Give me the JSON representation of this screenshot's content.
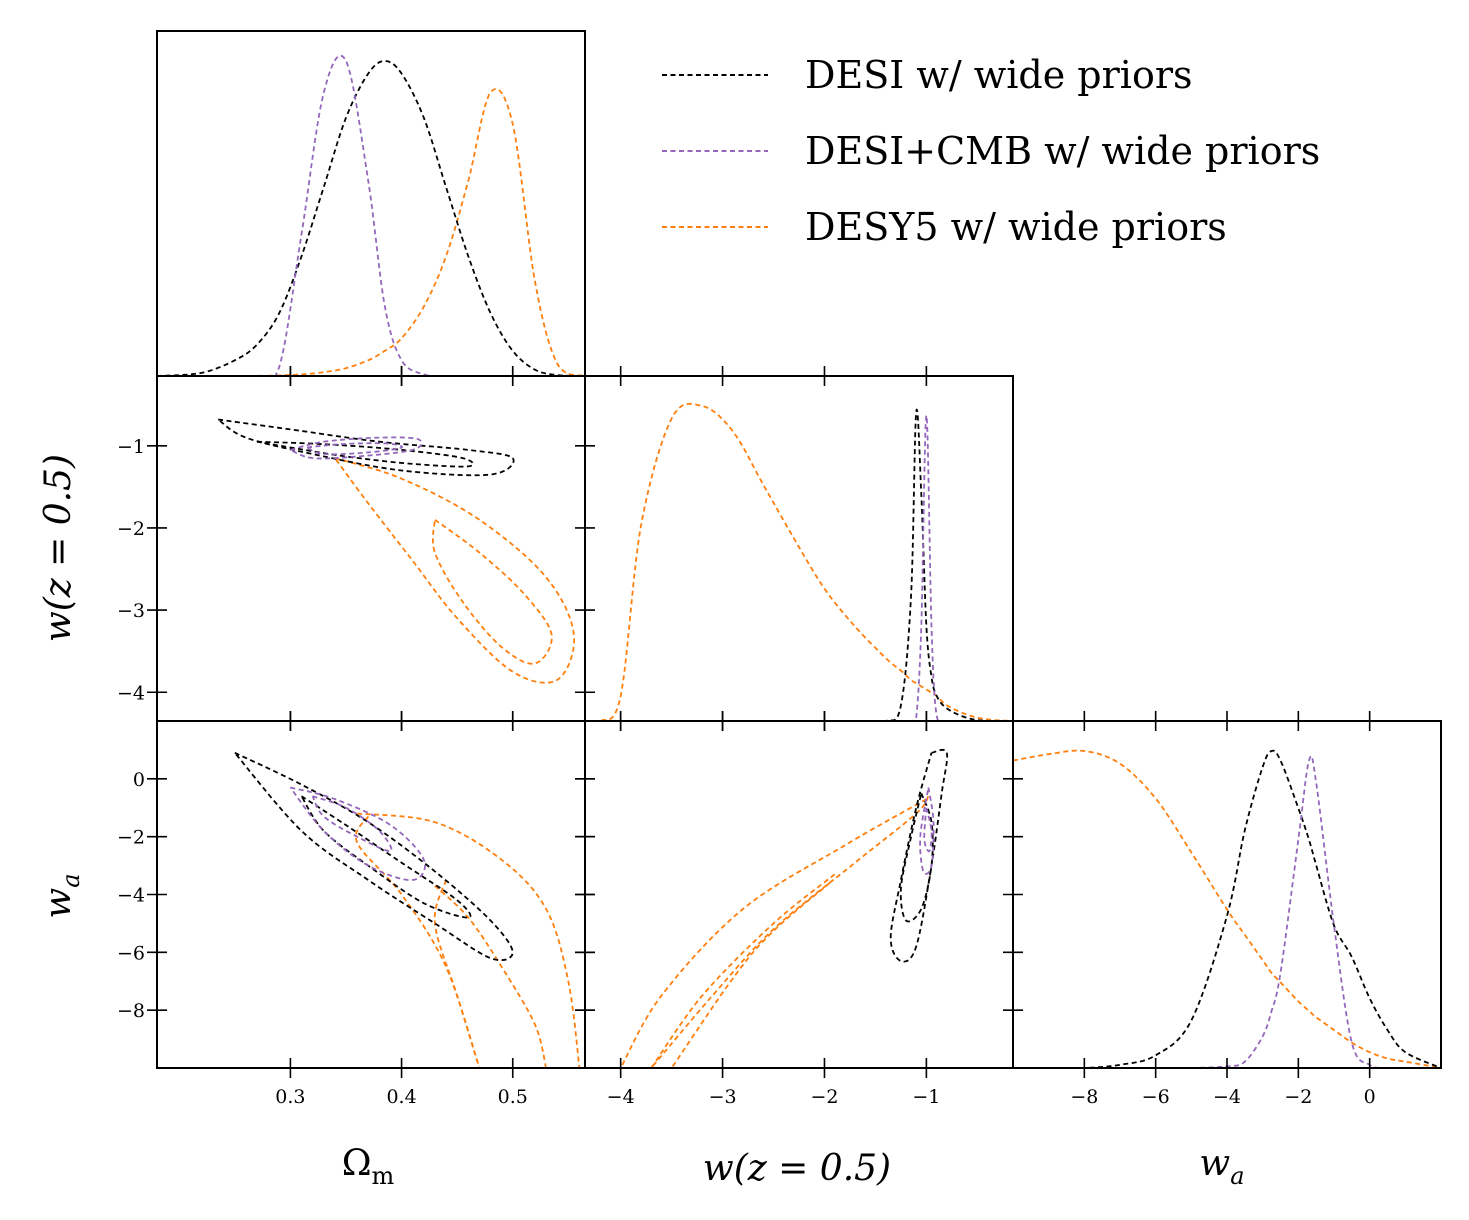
{
  "chart_data": {
    "type": "corner",
    "parameters": [
      {
        "key": "om",
        "label": "Ω",
        "sub": "m",
        "range": [
          0.18,
          0.565
        ],
        "ticks": [
          0.3,
          0.4,
          0.5
        ],
        "tick_labels": [
          "0.3",
          "0.4",
          "0.5"
        ]
      },
      {
        "key": "w",
        "label": "w(z = 0.5)",
        "range": [
          -4.35,
          -0.15
        ],
        "ticks": [
          -4,
          -3,
          -2,
          -1
        ],
        "tick_labels": [
          "−4",
          "−3",
          "−2",
          "−1"
        ]
      },
      {
        "key": "wa",
        "label": "w",
        "sub": "a",
        "range": [
          -10,
          2
        ],
        "ticks": [
          -8,
          -6,
          -4,
          -2,
          0
        ],
        "tick_labels": [
          "−8",
          "−6",
          "−4",
          "−2",
          "0"
        ]
      }
    ],
    "legend": [
      {
        "name": "DESI w/ wide priors",
        "color": "#000000"
      },
      {
        "name": "DESI+CMB w/ wide priors",
        "color": "#9467bd"
      },
      {
        "name": "DESY5 w/ wide priors",
        "color": "#ff7f0e"
      }
    ],
    "marginals": {
      "om": {
        "x": [
          0.18,
          0.22,
          0.25,
          0.27,
          0.29,
          0.31,
          0.33,
          0.35,
          0.37,
          0.385,
          0.4,
          0.42,
          0.44,
          0.46,
          0.48,
          0.5,
          0.52,
          0.54,
          0.565
        ],
        "DESI": [
          0.0,
          0.01,
          0.05,
          0.1,
          0.2,
          0.38,
          0.6,
          0.82,
          0.96,
          1.0,
          0.96,
          0.82,
          0.6,
          0.38,
          0.2,
          0.08,
          0.02,
          0.003,
          0.0
        ],
        "DESI+CMB": [
          0.0,
          0.0,
          0.0,
          0.002,
          0.03,
          0.45,
          0.9,
          1.0,
          0.62,
          0.22,
          0.05,
          0.005,
          0.0,
          0.0,
          0.0,
          0.0,
          0.0,
          0.0,
          0.0
        ],
        "DESY5": [
          0.0,
          0.0,
          0.0,
          0.0,
          0.002,
          0.005,
          0.012,
          0.025,
          0.05,
          0.08,
          0.12,
          0.22,
          0.38,
          0.62,
          0.9,
          0.8,
          0.3,
          0.04,
          0.0
        ]
      },
      "w": {
        "x": [
          -4.35,
          -4.2,
          -4.0,
          -3.8,
          -3.5,
          -3.2,
          -2.9,
          -2.6,
          -2.3,
          -2.0,
          -1.7,
          -1.4,
          -1.25,
          -1.15,
          -1.1,
          -1.05,
          -1.0,
          -0.95,
          -0.9,
          -0.8,
          -0.6,
          -0.4,
          -0.15
        ],
        "DESI": [
          0.0,
          0.0,
          0.0,
          0.0,
          0.0,
          0.0,
          0.0,
          0.0,
          0.0,
          0.0,
          0.0,
          0.0,
          0.05,
          0.4,
          0.98,
          0.72,
          0.3,
          0.14,
          0.08,
          0.04,
          0.01,
          0.0,
          0.0
        ],
        "DESI+CMB": [
          0.0,
          0.0,
          0.0,
          0.0,
          0.0,
          0.0,
          0.0,
          0.0,
          0.0,
          0.0,
          0.0,
          0.0,
          0.0,
          0.0,
          0.01,
          0.3,
          0.97,
          0.3,
          0.02,
          0.0,
          0.0,
          0.0,
          0.0
        ],
        "DESY5": [
          0.0,
          0.0,
          0.08,
          0.62,
          0.96,
          1.0,
          0.92,
          0.75,
          0.58,
          0.42,
          0.3,
          0.2,
          0.16,
          0.13,
          0.12,
          0.11,
          0.1,
          0.09,
          0.08,
          0.05,
          0.02,
          0.005,
          0.0
        ]
      },
      "wa": {
        "x": [
          -10,
          -9,
          -8,
          -7,
          -6,
          -5,
          -4,
          -3.5,
          -3,
          -2.75,
          -2.5,
          -2,
          -1.7,
          -1.5,
          -1,
          -0.5,
          0,
          0.5,
          1,
          2
        ],
        "DESI": [
          0.0,
          0.0,
          0.0,
          0.01,
          0.04,
          0.15,
          0.48,
          0.75,
          0.95,
          1.0,
          0.97,
          0.82,
          0.72,
          0.64,
          0.45,
          0.35,
          0.22,
          0.12,
          0.05,
          0.0
        ],
        "DESI+CMB": [
          0.0,
          0.0,
          0.0,
          0.0,
          0.0,
          0.0,
          0.005,
          0.02,
          0.1,
          0.18,
          0.3,
          0.72,
          0.97,
          0.9,
          0.45,
          0.08,
          0.01,
          0.0,
          0.0,
          0.0
        ],
        "DESY5": [
          0.97,
          0.99,
          1.0,
          0.96,
          0.85,
          0.68,
          0.5,
          0.42,
          0.34,
          0.3,
          0.27,
          0.21,
          0.18,
          0.16,
          0.12,
          0.08,
          0.05,
          0.03,
          0.02,
          0.0
        ]
      }
    },
    "contours": {
      "w_vs_om": {
        "DESI": [
          {
            "points": [
              [
                0.27,
                -0.95
              ],
              [
                0.33,
                -0.98
              ],
              [
                0.4,
                -1.05
              ],
              [
                0.455,
                -1.15
              ],
              [
                0.46,
                -1.25
              ],
              [
                0.41,
                -1.22
              ],
              [
                0.35,
                -1.13
              ],
              [
                0.3,
                -1.02
              ],
              [
                0.27,
                -0.95
              ]
            ]
          },
          {
            "points": [
              [
                0.235,
                -0.68
              ],
              [
                0.3,
                -0.8
              ],
              [
                0.38,
                -0.95
              ],
              [
                0.46,
                -1.05
              ],
              [
                0.5,
                -1.15
              ],
              [
                0.48,
                -1.35
              ],
              [
                0.4,
                -1.3
              ],
              [
                0.32,
                -1.1
              ],
              [
                0.26,
                -0.9
              ],
              [
                0.235,
                -0.68
              ]
            ]
          }
        ],
        "DESI+CMB": [
          {
            "points": [
              [
                0.315,
                -1.02
              ],
              [
                0.345,
                -0.98
              ],
              [
                0.385,
                -0.97
              ],
              [
                0.4,
                -1.02
              ],
              [
                0.37,
                -1.08
              ],
              [
                0.33,
                -1.1
              ],
              [
                0.315,
                -1.02
              ]
            ]
          },
          {
            "points": [
              [
                0.3,
                -1.05
              ],
              [
                0.33,
                -0.95
              ],
              [
                0.38,
                -0.9
              ],
              [
                0.415,
                -0.92
              ],
              [
                0.41,
                -1.05
              ],
              [
                0.36,
                -1.13
              ],
              [
                0.32,
                -1.15
              ],
              [
                0.3,
                -1.05
              ]
            ]
          }
        ],
        "DESY5": [
          {
            "points": [
              [
                0.43,
                -1.9
              ],
              [
                0.47,
                -2.3
              ],
              [
                0.51,
                -2.8
              ],
              [
                0.535,
                -3.3
              ],
              [
                0.52,
                -3.65
              ],
              [
                0.49,
                -3.45
              ],
              [
                0.455,
                -2.9
              ],
              [
                0.43,
                -2.3
              ],
              [
                0.43,
                -1.9
              ]
            ]
          },
          {
            "points": [
              [
                0.34,
                -1.15
              ],
              [
                0.4,
                -1.4
              ],
              [
                0.47,
                -1.9
              ],
              [
                0.53,
                -2.6
              ],
              [
                0.555,
                -3.3
              ],
              [
                0.54,
                -3.85
              ],
              [
                0.5,
                -3.75
              ],
              [
                0.45,
                -3.1
              ],
              [
                0.41,
                -2.4
              ],
              [
                0.37,
                -1.7
              ],
              [
                0.34,
                -1.15
              ]
            ]
          }
        ]
      },
      "wa_vs_om": {
        "DESI": [
          {
            "points": [
              [
                0.31,
                -0.6
              ],
              [
                0.35,
                -1.6
              ],
              [
                0.4,
                -2.9
              ],
              [
                0.45,
                -4.2
              ],
              [
                0.46,
                -4.8
              ],
              [
                0.42,
                -4.3
              ],
              [
                0.37,
                -3.0
              ],
              [
                0.33,
                -1.8
              ],
              [
                0.31,
                -0.6
              ]
            ]
          },
          {
            "points": [
              [
                0.25,
                0.9
              ],
              [
                0.31,
                -0.2
              ],
              [
                0.37,
                -1.5
              ],
              [
                0.43,
                -3.2
              ],
              [
                0.48,
                -4.9
              ],
              [
                0.5,
                -6.0
              ],
              [
                0.48,
                -6.2
              ],
              [
                0.43,
                -5.0
              ],
              [
                0.37,
                -3.5
              ],
              [
                0.31,
                -1.8
              ],
              [
                0.25,
                0.9
              ]
            ]
          }
        ],
        "DESI+CMB": [
          {
            "points": [
              [
                0.32,
                -0.6
              ],
              [
                0.35,
                -1.0
              ],
              [
                0.38,
                -1.8
              ],
              [
                0.39,
                -2.5
              ],
              [
                0.36,
                -2.0
              ],
              [
                0.33,
                -1.3
              ],
              [
                0.32,
                -0.6
              ]
            ]
          },
          {
            "points": [
              [
                0.3,
                -0.3
              ],
              [
                0.34,
                -0.7
              ],
              [
                0.39,
                -1.6
              ],
              [
                0.42,
                -2.8
              ],
              [
                0.41,
                -3.5
              ],
              [
                0.37,
                -3.0
              ],
              [
                0.33,
                -1.8
              ],
              [
                0.3,
                -0.3
              ]
            ]
          }
        ],
        "DESY5": [
          {
            "points": [
              [
                0.43,
                -3.7
              ],
              [
                0.46,
                -4.8
              ],
              [
                0.49,
                -6.5
              ],
              [
                0.52,
                -8.5
              ],
              [
                0.53,
                -10.0
              ]
            ]
          },
          {
            "points": [
              [
                0.44,
                -3.5
              ],
              [
                0.43,
                -5.0
              ],
              [
                0.45,
                -7.5
              ],
              [
                0.47,
                -10.0
              ]
            ]
          },
          {
            "points": [
              [
                0.36,
                -1.2
              ],
              [
                0.43,
                -1.5
              ],
              [
                0.49,
                -2.8
              ],
              [
                0.53,
                -4.5
              ],
              [
                0.55,
                -7.0
              ],
              [
                0.56,
                -10.0
              ]
            ]
          },
          {
            "points": [
              [
                0.37,
                -1.3
              ],
              [
                0.36,
                -2.2
              ],
              [
                0.4,
                -4.0
              ],
              [
                0.44,
                -6.5
              ],
              [
                0.47,
                -10.0
              ]
            ]
          }
        ]
      },
      "wa_vs_w": {
        "DESI": [
          {
            "points": [
              [
                -1.05,
                -0.5
              ],
              [
                -0.95,
                -1.5
              ],
              [
                -0.95,
                -3.0
              ],
              [
                -1.05,
                -4.5
              ],
              [
                -1.2,
                -4.9
              ],
              [
                -1.25,
                -3.8
              ],
              [
                -1.15,
                -2.0
              ],
              [
                -1.05,
                -0.5
              ]
            ]
          },
          {
            "points": [
              [
                -0.95,
                0.9
              ],
              [
                -0.8,
                0.9
              ],
              [
                -0.85,
                -0.5
              ],
              [
                -0.95,
                -3.0
              ],
              [
                -1.1,
                -5.8
              ],
              [
                -1.25,
                -6.3
              ],
              [
                -1.35,
                -5.5
              ],
              [
                -1.25,
                -3.5
              ],
              [
                -1.1,
                -1.0
              ],
              [
                -0.95,
                0.9
              ]
            ]
          }
        ],
        "DESI+CMB": [
          {
            "points": [
              [
                -1.0,
                -1.0
              ],
              [
                -0.95,
                -1.8
              ],
              [
                -0.97,
                -2.5
              ],
              [
                -1.02,
                -2.1
              ],
              [
                -1.0,
                -1.0
              ]
            ]
          },
          {
            "points": [
              [
                -0.98,
                -0.3
              ],
              [
                -0.93,
                -1.5
              ],
              [
                -0.95,
                -3.0
              ],
              [
                -1.03,
                -3.2
              ],
              [
                -1.06,
                -2.0
              ],
              [
                -0.98,
                -0.3
              ]
            ]
          }
        ],
        "DESY5": [
          {
            "points": [
              [
                -1.9,
                -3.3
              ],
              [
                -2.5,
                -5.0
              ],
              [
                -3.2,
                -7.5
              ],
              [
                -3.7,
                -10.0
              ]
            ]
          },
          {
            "points": [
              [
                -1.95,
                -3.6
              ],
              [
                -2.7,
                -6.0
              ],
              [
                -3.5,
                -10.0
              ]
            ]
          },
          {
            "points": [
              [
                -1.0,
                -0.7
              ],
              [
                -1.8,
                -2.3
              ],
              [
                -2.8,
                -4.5
              ],
              [
                -3.6,
                -7.5
              ],
              [
                -4.0,
                -10.0
              ]
            ]
          },
          {
            "points": [
              [
                -0.98,
                -0.6
              ],
              [
                -1.1,
                -1.2
              ],
              [
                -1.7,
                -2.9
              ],
              [
                -2.5,
                -5.2
              ],
              [
                -3.1,
                -7.5
              ],
              [
                -3.7,
                -10.0
              ]
            ]
          }
        ]
      }
    }
  }
}
